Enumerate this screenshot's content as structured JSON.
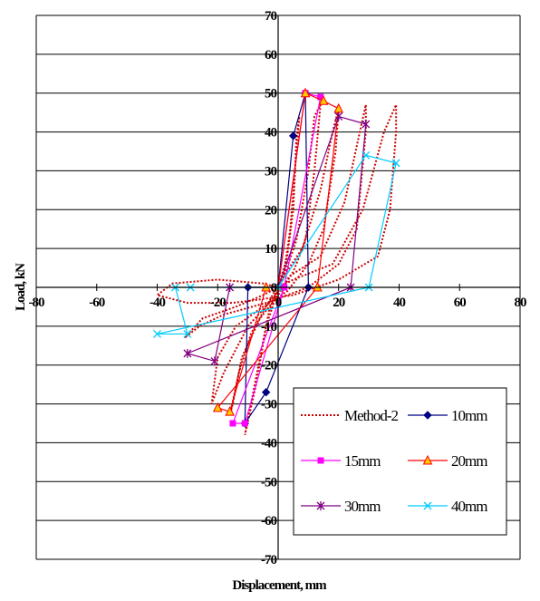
{
  "chart_data": {
    "type": "line",
    "xlabel": "Displacement, mm",
    "ylabel": "Load, kN",
    "xlim": [
      -80,
      80
    ],
    "ylim": [
      -70,
      70
    ],
    "x_ticks": [
      "-80",
      "-60",
      "-40",
      "-20",
      "0",
      "20",
      "40",
      "60",
      "80"
    ],
    "y_ticks": [
      "70",
      "60",
      "50",
      "40",
      "30",
      "20",
      "10",
      "0",
      "-10",
      "-20",
      "-30",
      "-40",
      "-50",
      "-60",
      "-70"
    ],
    "grid": "horizontal",
    "legend_position": "bottom-right",
    "series": [
      {
        "name": "Method-2",
        "color": "#cc0000",
        "style": "dotted",
        "marker": "none",
        "points": [
          [
            0,
            0
          ],
          [
            3,
            8
          ],
          [
            5,
            20
          ],
          [
            6,
            38
          ],
          [
            7,
            44
          ],
          [
            4,
            15
          ],
          [
            2,
            4
          ],
          [
            -1,
            -2
          ],
          [
            -3,
            -6
          ],
          [
            -7,
            -22
          ],
          [
            -10,
            -34
          ],
          [
            -11,
            -38
          ],
          [
            -7,
            -24
          ],
          [
            -4,
            -10
          ],
          [
            -1,
            -3
          ],
          [
            2,
            3
          ],
          [
            6,
            12
          ],
          [
            10,
            30
          ],
          [
            12,
            44
          ],
          [
            14,
            47
          ],
          [
            12,
            30
          ],
          [
            9,
            12
          ],
          [
            5,
            4
          ],
          [
            0,
            -2
          ],
          [
            -6,
            -8
          ],
          [
            -12,
            -18
          ],
          [
            -15,
            -30
          ],
          [
            -16,
            -33
          ],
          [
            -13,
            -22
          ],
          [
            -9,
            -12
          ],
          [
            -4,
            -5
          ],
          [
            1,
            2
          ],
          [
            8,
            10
          ],
          [
            14,
            25
          ],
          [
            18,
            40
          ],
          [
            20,
            46
          ],
          [
            19,
            35
          ],
          [
            15,
            15
          ],
          [
            10,
            6
          ],
          [
            3,
            -1
          ],
          [
            -5,
            -5
          ],
          [
            -14,
            -10
          ],
          [
            -20,
            -18
          ],
          [
            -22,
            -30
          ],
          [
            -18,
            -22
          ],
          [
            -10,
            -10
          ],
          [
            -3,
            -4
          ],
          [
            4,
            3
          ],
          [
            14,
            8
          ],
          [
            22,
            22
          ],
          [
            27,
            40
          ],
          [
            29,
            47
          ],
          [
            29,
            40
          ],
          [
            26,
            15
          ],
          [
            20,
            6
          ],
          [
            10,
            0
          ],
          [
            -4,
            -4
          ],
          [
            -18,
            -7
          ],
          [
            -26,
            -10
          ],
          [
            -31,
            -13
          ],
          [
            -25,
            -8
          ],
          [
            -14,
            -5
          ],
          [
            -5,
            -2
          ],
          [
            5,
            2
          ],
          [
            18,
            6
          ],
          [
            28,
            20
          ],
          [
            35,
            40
          ],
          [
            39,
            47
          ],
          [
            39,
            40
          ],
          [
            37,
            20
          ],
          [
            33,
            8
          ],
          [
            20,
            2
          ],
          [
            5,
            -2
          ],
          [
            -15,
            -4
          ],
          [
            -30,
            -4
          ],
          [
            -40,
            -2
          ],
          [
            -35,
            1
          ],
          [
            -20,
            2
          ],
          [
            -5,
            1
          ],
          [
            0,
            0
          ]
        ]
      },
      {
        "name": "10mm",
        "color": "#000080",
        "marker": "diamond",
        "points": [
          [
            0,
            0
          ],
          [
            5,
            39
          ],
          [
            9,
            50
          ],
          [
            10,
            0
          ],
          [
            -4,
            -27
          ],
          [
            -11,
            -35
          ],
          [
            -10,
            0
          ],
          [
            0,
            0
          ]
        ]
      },
      {
        "name": "15mm",
        "color": "#ff00ff",
        "marker": "square",
        "points": [
          [
            0,
            0
          ],
          [
            9,
            50
          ],
          [
            14,
            49
          ],
          [
            2,
            0
          ],
          [
            -15,
            -35
          ],
          [
            -11,
            -35
          ],
          [
            2,
            0
          ]
        ]
      },
      {
        "name": "20mm",
        "color": "#ff0000",
        "marker": "triangle",
        "points": [
          [
            0,
            0
          ],
          [
            9,
            50
          ],
          [
            15,
            48
          ],
          [
            20,
            46
          ],
          [
            13,
            0
          ],
          [
            -20,
            -31
          ],
          [
            -16,
            -32
          ],
          [
            -4,
            0
          ]
        ]
      },
      {
        "name": "30mm",
        "color": "#800080",
        "marker": "star",
        "points": [
          [
            0,
            0
          ],
          [
            20,
            44
          ],
          [
            29,
            42
          ],
          [
            24,
            0
          ],
          [
            -30,
            -17
          ],
          [
            -21,
            -19
          ],
          [
            -16,
            0
          ],
          [
            0,
            0
          ]
        ]
      },
      {
        "name": "40mm",
        "color": "#00ccff",
        "marker": "x",
        "points": [
          [
            0,
            0
          ],
          [
            29,
            34
          ],
          [
            39,
            32
          ],
          [
            30,
            0
          ],
          [
            -40,
            -12
          ],
          [
            -30,
            -12
          ],
          [
            -34,
            0
          ],
          [
            -29,
            0
          ],
          [
            0,
            0
          ]
        ]
      }
    ]
  }
}
